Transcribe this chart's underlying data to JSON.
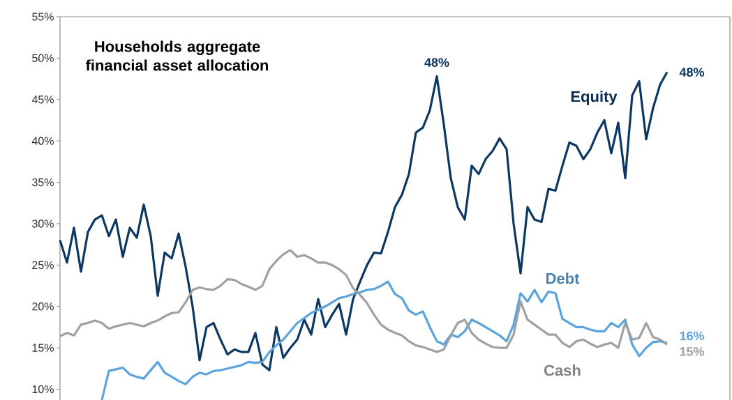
{
  "chart_data": {
    "type": "line",
    "title": "Households aggregate financial asset allocation",
    "categories": [
      null,
      null,
      null,
      null,
      null,
      null,
      null,
      null,
      null,
      null,
      null,
      null,
      null,
      null,
      null,
      null,
      null,
      null,
      null,
      null,
      null,
      null,
      null,
      null,
      null,
      null,
      null,
      null,
      null,
      null,
      null,
      null,
      null,
      null,
      null,
      null,
      null,
      null,
      null,
      null,
      null,
      null,
      null,
      null,
      null,
      null,
      null,
      null,
      null,
      null,
      null,
      null,
      null,
      null,
      null,
      null,
      null,
      null,
      null,
      null,
      null,
      null,
      null,
      null,
      null,
      null,
      null,
      null,
      null,
      null,
      null,
      null,
      null,
      null,
      null,
      null,
      null,
      null,
      null,
      null,
      null,
      null,
      null,
      null,
      null,
      null,
      null,
      null
    ],
    "series": [
      {
        "name": "Equity",
        "color": "#0d3763",
        "values": [
          28,
          25.3,
          29.5,
          24.2,
          29,
          30.5,
          31,
          28.5,
          30.5,
          26,
          29.5,
          28.3,
          32.3,
          28.5,
          21.3,
          26.5,
          25.8,
          28.8,
          24.8,
          20,
          13.5,
          17.5,
          18,
          16,
          14.2,
          14.8,
          14.5,
          14.5,
          16.8,
          13,
          12.3,
          17.5,
          13.8,
          15,
          16,
          18.4,
          16.6,
          20.9,
          17.5,
          19,
          20.3,
          16.6,
          20.9,
          23,
          25,
          26.5,
          26.4,
          29,
          32,
          33.5,
          36,
          41,
          41.6,
          43.7,
          47.8,
          42,
          35.5,
          32,
          30.5,
          37,
          36,
          37.8,
          38.8,
          40.3,
          39,
          30,
          24,
          32,
          30.5,
          30.2,
          34.2,
          34,
          37,
          39.8,
          39.4,
          37.8,
          39,
          41,
          42.5,
          38.5,
          42.2,
          35.5,
          45.5,
          47.2,
          40.2,
          44,
          46.8,
          48.3
        ],
        "value_labels": [
          null,
          null,
          null,
          null,
          null,
          null,
          null,
          null,
          null,
          null,
          null,
          null,
          null,
          null,
          null,
          null,
          null,
          null,
          null,
          null,
          null,
          null,
          null,
          null,
          null,
          null,
          null,
          null,
          null,
          null,
          null,
          null,
          null,
          null,
          null,
          null,
          null,
          null,
          null,
          null,
          null,
          null,
          null,
          null,
          null,
          null,
          null,
          null,
          null,
          null,
          null,
          null,
          null,
          null,
          "48%",
          null,
          null,
          null,
          null,
          null,
          null,
          null,
          null,
          null,
          null,
          null,
          null,
          null,
          null,
          null,
          null,
          null,
          null,
          null,
          null,
          null,
          null,
          null,
          null,
          null,
          null,
          null,
          null,
          null,
          null,
          null,
          null,
          "48%"
        ]
      },
      {
        "name": "Debt",
        "color": "#5aa3dd",
        "values": [
          null,
          null,
          null,
          null,
          null,
          null,
          8.7,
          12.2,
          12.4,
          12.6,
          11.8,
          11.5,
          11.3,
          12.3,
          13.3,
          12,
          11.5,
          11,
          10.6,
          11.5,
          12,
          11.8,
          12.2,
          12.3,
          12.5,
          12.7,
          12.9,
          13.3,
          13.2,
          13.3,
          14.5,
          15.3,
          16,
          17,
          18,
          18.6,
          19.2,
          19.6,
          20,
          20.5,
          21,
          21.2,
          21.5,
          21.7,
          22,
          22.1,
          22.5,
          23,
          21.5,
          21,
          19.5,
          19,
          19.4,
          17.5,
          15.8,
          15.4,
          16.6,
          16.3,
          17,
          18.4,
          18,
          17.5,
          17,
          16.5,
          15.8,
          17.8,
          21.6,
          20.6,
          22,
          20.5,
          21.8,
          21.6,
          18.5,
          18,
          17.5,
          17.5,
          17.2,
          17,
          17,
          18,
          17.5,
          18.4,
          15.4,
          14,
          15,
          15.7,
          15.8,
          15.6
        ],
        "value_labels": [
          null,
          null,
          null,
          null,
          null,
          null,
          null,
          null,
          null,
          null,
          null,
          null,
          null,
          null,
          null,
          null,
          null,
          null,
          null,
          null,
          null,
          null,
          null,
          null,
          null,
          null,
          null,
          null,
          null,
          null,
          null,
          null,
          null,
          null,
          null,
          null,
          null,
          null,
          null,
          null,
          null,
          null,
          null,
          null,
          null,
          null,
          null,
          null,
          null,
          null,
          null,
          null,
          null,
          null,
          null,
          null,
          null,
          null,
          null,
          null,
          null,
          null,
          null,
          null,
          null,
          null,
          null,
          null,
          null,
          null,
          null,
          null,
          null,
          null,
          null,
          null,
          null,
          null,
          null,
          null,
          null,
          null,
          null,
          null,
          null,
          null,
          null,
          "16%"
        ]
      },
      {
        "name": "Cash",
        "color": "#a0a0a0",
        "values": [
          16.4,
          16.8,
          16.5,
          17.8,
          18,
          18.3,
          18,
          17.3,
          17.6,
          17.8,
          18,
          17.8,
          17.6,
          18,
          18.3,
          18.8,
          19.2,
          19.3,
          20.5,
          22,
          22.3,
          22.1,
          22,
          22.5,
          23.3,
          23.2,
          22.7,
          22.4,
          22,
          22.5,
          24.5,
          25.5,
          26.3,
          26.8,
          26,
          26.2,
          25.8,
          25.3,
          25.3,
          25,
          24.5,
          23.8,
          22.2,
          21.4,
          20.4,
          19,
          17.8,
          17.2,
          16.8,
          16.5,
          15.8,
          15.3,
          15.1,
          14.8,
          14.5,
          14.8,
          16.5,
          18,
          18.4,
          16.8,
          16,
          15.5,
          15.1,
          15,
          15,
          16.6,
          20.6,
          18.4,
          17.8,
          17.2,
          16.6,
          16.6,
          15.6,
          15.1,
          15.8,
          16,
          15.5,
          15.1,
          15.4,
          15.6,
          15,
          18,
          16,
          16.2,
          18,
          16.3,
          16,
          15.4
        ],
        "value_labels": [
          null,
          null,
          null,
          null,
          null,
          null,
          null,
          null,
          null,
          null,
          null,
          null,
          null,
          null,
          null,
          null,
          null,
          null,
          null,
          null,
          null,
          null,
          null,
          null,
          null,
          null,
          null,
          null,
          null,
          null,
          null,
          null,
          null,
          null,
          null,
          null,
          null,
          null,
          null,
          null,
          null,
          null,
          null,
          null,
          null,
          null,
          null,
          null,
          null,
          null,
          null,
          null,
          null,
          null,
          null,
          null,
          null,
          null,
          null,
          null,
          null,
          null,
          null,
          null,
          null,
          null,
          null,
          null,
          null,
          null,
          null,
          null,
          null,
          null,
          null,
          null,
          null,
          null,
          null,
          null,
          null,
          null,
          null,
          null,
          null,
          null,
          null,
          "15%"
        ]
      }
    ],
    "ylim": [
      8.7,
      55
    ],
    "yticks": [
      {
        "value": 10,
        "label": "10%"
      },
      {
        "value": 15,
        "label": "15%"
      },
      {
        "value": 20,
        "label": "20%"
      },
      {
        "value": 25,
        "label": "25%"
      },
      {
        "value": 30,
        "label": "30%"
      },
      {
        "value": 35,
        "label": "35%"
      },
      {
        "value": 40,
        "label": "40%"
      },
      {
        "value": 45,
        "label": "45%"
      },
      {
        "value": 50,
        "label": "50%"
      },
      {
        "value": 55,
        "label": "55%"
      }
    ],
    "tick_labels": "y",
    "grid": false,
    "marker": "none",
    "line_style": "solid"
  }
}
